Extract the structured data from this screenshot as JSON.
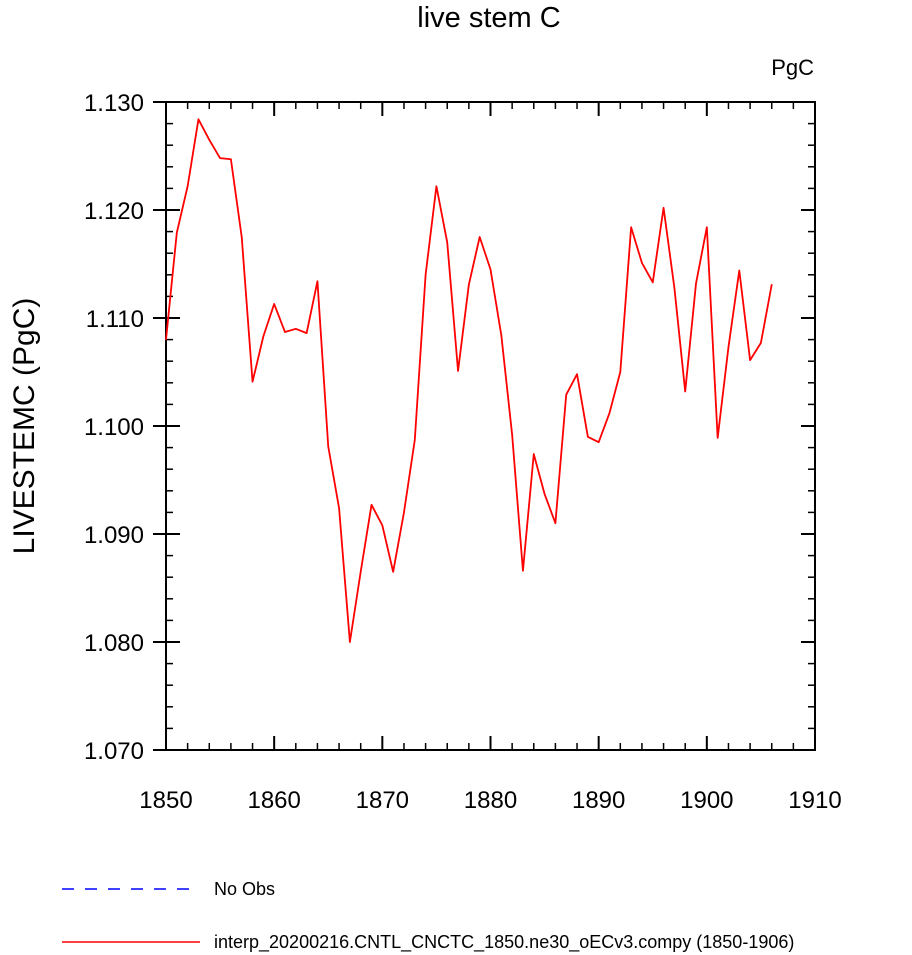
{
  "chart_data": {
    "type": "line",
    "title": "live stem C",
    "units_label": "PgC",
    "ylabel": "LIVESTEMC  (PgC)",
    "xlabel": "",
    "xlim": [
      1850,
      1910
    ],
    "ylim": [
      1.07,
      1.13
    ],
    "x_ticks": [
      1850,
      1860,
      1870,
      1880,
      1890,
      1900,
      1910
    ],
    "x_tick_labels": [
      "1850",
      "1860",
      "1870",
      "1880",
      "1890",
      "1900",
      "1910"
    ],
    "y_ticks": [
      1.07,
      1.08,
      1.09,
      1.1,
      1.11,
      1.12,
      1.13
    ],
    "y_tick_labels": [
      "1.070",
      "1.080",
      "1.090",
      "1.100",
      "1.110",
      "1.120",
      "1.130"
    ],
    "grid": false,
    "series": [
      {
        "name": "interp_20200216.CNTL_CNCTC_1850.ne30_oECv3.compy (1850-1906)",
        "color": "#ff0000",
        "style": "solid",
        "x": [
          1850,
          1851,
          1852,
          1853,
          1854,
          1855,
          1856,
          1857,
          1858,
          1859,
          1860,
          1861,
          1862,
          1863,
          1864,
          1865,
          1866,
          1867,
          1868,
          1869,
          1870,
          1871,
          1872,
          1873,
          1874,
          1875,
          1876,
          1877,
          1878,
          1879,
          1880,
          1881,
          1882,
          1883,
          1884,
          1885,
          1886,
          1887,
          1888,
          1889,
          1890,
          1891,
          1892,
          1893,
          1894,
          1895,
          1896,
          1897,
          1898,
          1899,
          1900,
          1901,
          1902,
          1903,
          1904,
          1905,
          1906
        ],
        "values": [
          1.108,
          1.1179,
          1.1222,
          1.1284,
          1.1265,
          1.1248,
          1.1247,
          1.1175,
          1.1041,
          1.1083,
          1.1113,
          1.1087,
          1.109,
          1.1086,
          1.1134,
          1.0981,
          1.0924,
          1.08,
          1.0865,
          1.0927,
          1.0908,
          1.0865,
          1.092,
          1.0987,
          1.114,
          1.1222,
          1.117,
          1.1051,
          1.1131,
          1.1175,
          1.1145,
          1.1084,
          1.0992,
          1.0866,
          1.0974,
          1.0937,
          1.091,
          1.1029,
          1.1048,
          1.099,
          1.0985,
          1.1012,
          1.105,
          1.1184,
          1.1151,
          1.1133,
          1.1202,
          1.1128,
          1.1032,
          1.1132,
          1.1184,
          1.0989,
          1.1073,
          1.1144,
          1.1061,
          1.1077,
          1.1131
        ]
      },
      {
        "name": "No Obs",
        "color": "#0000ff",
        "style": "dashed",
        "x": [],
        "values": []
      }
    ],
    "legend": {
      "placement": "bottom-left",
      "entries": [
        {
          "label": "No Obs",
          "color": "#0000ff",
          "style": "dashed"
        },
        {
          "label": "interp_20200216.CNTL_CNCTC_1850.ne30_oECv3.compy (1850-1906)",
          "color": "#ff0000",
          "style": "solid"
        }
      ]
    }
  }
}
